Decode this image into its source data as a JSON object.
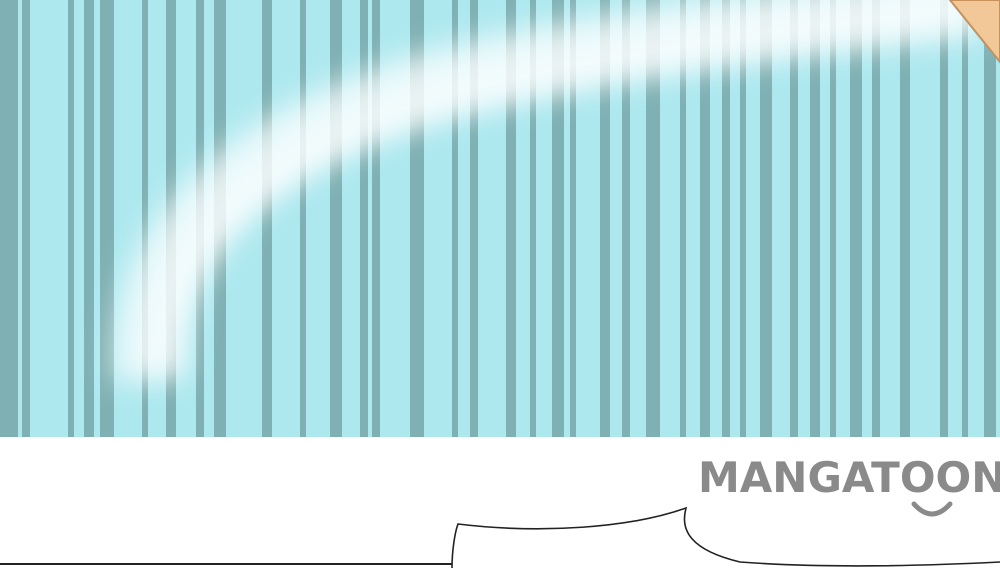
{
  "watermark": {
    "brand": "MANGATOON",
    "color": "#8a8a8a"
  },
  "panel": {
    "background_color": "#aee8ef",
    "stripe_color": "#6f9fa0",
    "highlight_color": "#ffffff",
    "corner_accent_color": "#f2c898"
  }
}
